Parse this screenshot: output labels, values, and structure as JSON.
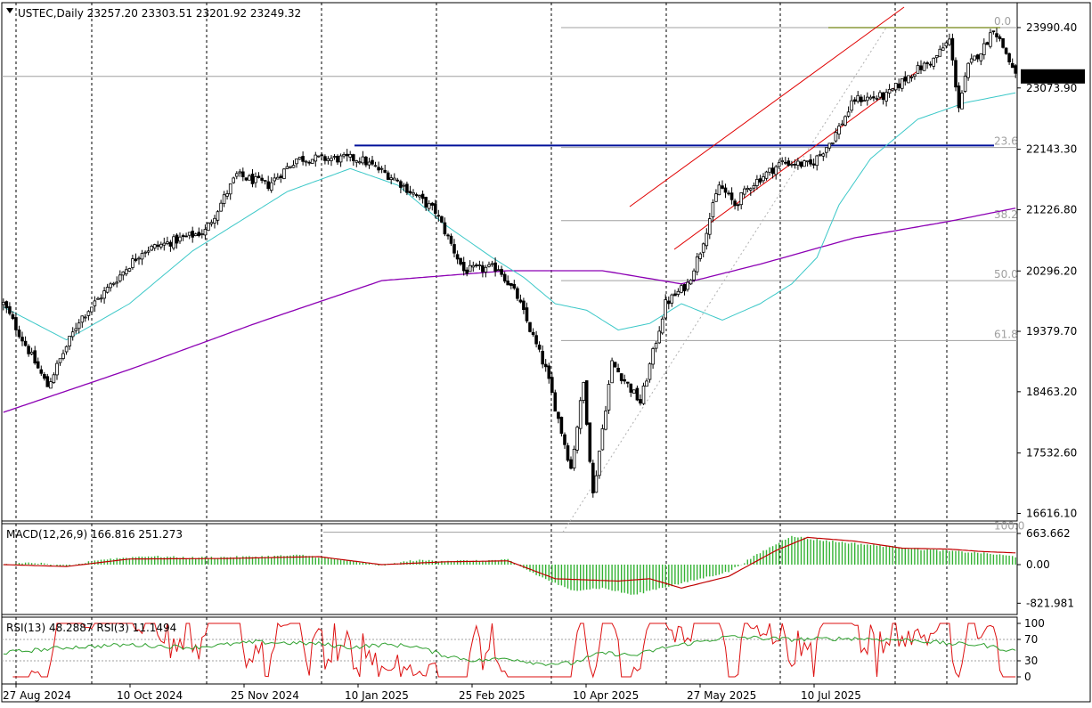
{
  "header": {
    "symbol": "USTEC,Daily",
    "ohlc": "23257.20 23303.51 23201.92 23249.32"
  },
  "colors": {
    "background": "#ffffff",
    "candle": "#000000",
    "ma_fast": "#3cc8c8",
    "ma_slow": "#8c00b4",
    "channel": "#e00000",
    "resistance": "#00109a",
    "fib_level": "#a0a0a0",
    "fib_top": "#8a9a3a",
    "macd_hist": "#34b234",
    "macd_signal": "#c00000",
    "rsi13": "#2ea02e",
    "rsi3": "#dd1010",
    "grid": "#000000"
  },
  "chart_data": [
    {
      "type": "candlestick",
      "name": "price",
      "price_axis": {
        "ticks": [
          "23990.40",
          "23073.90",
          "22143.30",
          "21226.80",
          "20296.20",
          "19379.70",
          "18463.20",
          "17532.60",
          "16616.10"
        ],
        "current_price": "23249.32"
      },
      "date_axis": [
        "27 Aug 2024",
        "10 Oct 2024",
        "25 Nov 2024",
        "10 Jan 2025",
        "25 Feb 2025",
        "10 Apr 2025",
        "27 May 2025",
        "10 Jul 2025"
      ],
      "fibonacci_levels": [
        {
          "label": "0.0",
          "price": 23990
        },
        {
          "label": "23.6",
          "price": 22170
        },
        {
          "label": "38.2",
          "price": 21060
        },
        {
          "label": "50.0",
          "price": 20150
        },
        {
          "label": "61.8",
          "price": 19240
        },
        {
          "label": "100.0",
          "price": 16330
        }
      ],
      "resistance_level": 22200,
      "anchors": [
        [
          0,
          19800
        ],
        [
          14,
          18550
        ],
        [
          24,
          19550
        ],
        [
          44,
          20600
        ],
        [
          64,
          20900
        ],
        [
          74,
          21750
        ],
        [
          84,
          21600
        ],
        [
          93,
          22000
        ],
        [
          113,
          22000
        ],
        [
          124,
          21700
        ],
        [
          137,
          21200
        ],
        [
          146,
          20300
        ],
        [
          157,
          20350
        ],
        [
          163,
          19900
        ],
        [
          172,
          18800
        ],
        [
          180,
          17300
        ],
        [
          184,
          18600
        ],
        [
          187,
          16900
        ],
        [
          193,
          18900
        ],
        [
          202,
          18300
        ],
        [
          210,
          19800
        ],
        [
          217,
          20100
        ],
        [
          221,
          20600
        ],
        [
          227,
          21600
        ],
        [
          232,
          21300
        ],
        [
          237,
          21600
        ],
        [
          247,
          21950
        ],
        [
          256,
          21900
        ],
        [
          263,
          22300
        ],
        [
          270,
          22900
        ],
        [
          280,
          22950
        ],
        [
          288,
          23300
        ],
        [
          295,
          23500
        ],
        [
          300,
          23800
        ],
        [
          303,
          22800
        ],
        [
          306,
          23400
        ],
        [
          311,
          23700
        ],
        [
          314,
          23990
        ],
        [
          318,
          23600
        ],
        [
          321,
          23249
        ]
      ],
      "ma_fast": [
        [
          0,
          19750
        ],
        [
          20,
          19250
        ],
        [
          40,
          19800
        ],
        [
          60,
          20600
        ],
        [
          90,
          21500
        ],
        [
          110,
          21850
        ],
        [
          125,
          21600
        ],
        [
          140,
          21000
        ],
        [
          155,
          20500
        ],
        [
          165,
          20200
        ],
        [
          175,
          19800
        ],
        [
          185,
          19700
        ],
        [
          195,
          19400
        ],
        [
          205,
          19500
        ],
        [
          215,
          19800
        ],
        [
          228,
          19550
        ],
        [
          240,
          19800
        ],
        [
          250,
          20100
        ],
        [
          258,
          20500
        ],
        [
          265,
          21300
        ],
        [
          275,
          22000
        ],
        [
          290,
          22600
        ],
        [
          305,
          22850
        ],
        [
          321,
          23000
        ]
      ],
      "ma_slow": [
        [
          0,
          18150
        ],
        [
          40,
          18800
        ],
        [
          80,
          19500
        ],
        [
          120,
          20150
        ],
        [
          160,
          20300
        ],
        [
          190,
          20300
        ],
        [
          215,
          20100
        ],
        [
          240,
          20400
        ],
        [
          270,
          20800
        ],
        [
          300,
          21050
        ],
        [
          321,
          21250
        ]
      ]
    },
    {
      "type": "bar",
      "name": "macd",
      "label": "MACD(12,26,9) 166.816 251.273",
      "ticks": [
        "663.662",
        "0.00",
        "-821.981"
      ],
      "hist_anchors": [
        [
          0,
          0
        ],
        [
          10,
          40
        ],
        [
          20,
          -50
        ],
        [
          30,
          100
        ],
        [
          45,
          180
        ],
        [
          60,
          150
        ],
        [
          80,
          170
        ],
        [
          95,
          200
        ],
        [
          110,
          80
        ],
        [
          120,
          -20
        ],
        [
          130,
          90
        ],
        [
          150,
          80
        ],
        [
          160,
          100
        ],
        [
          170,
          -250
        ],
        [
          180,
          -550
        ],
        [
          190,
          -500
        ],
        [
          200,
          -650
        ],
        [
          205,
          -550
        ],
        [
          215,
          -400
        ],
        [
          230,
          -150
        ],
        [
          240,
          250
        ],
        [
          250,
          620
        ],
        [
          255,
          550
        ],
        [
          270,
          450
        ],
        [
          290,
          330
        ],
        [
          310,
          250
        ],
        [
          321,
          170
        ]
      ],
      "signal_anchors": [
        [
          0,
          0
        ],
        [
          20,
          -40
        ],
        [
          40,
          120
        ],
        [
          70,
          130
        ],
        [
          100,
          170
        ],
        [
          120,
          0
        ],
        [
          140,
          60
        ],
        [
          160,
          80
        ],
        [
          175,
          -300
        ],
        [
          195,
          -350
        ],
        [
          205,
          -300
        ],
        [
          215,
          -500
        ],
        [
          230,
          -250
        ],
        [
          245,
          300
        ],
        [
          255,
          580
        ],
        [
          270,
          500
        ],
        [
          285,
          350
        ],
        [
          300,
          330
        ],
        [
          310,
          280
        ],
        [
          321,
          250
        ]
      ]
    },
    {
      "type": "line",
      "name": "rsi",
      "label": "RSI(13) 48.2887  RSI(3) 11.1494",
      "ticks": [
        "100",
        "70",
        "30",
        "0"
      ],
      "levels": [
        70,
        30
      ],
      "rsi13_anchors": [
        [
          0,
          45
        ],
        [
          20,
          55
        ],
        [
          40,
          60
        ],
        [
          60,
          55
        ],
        [
          80,
          65
        ],
        [
          100,
          62
        ],
        [
          110,
          55
        ],
        [
          120,
          60
        ],
        [
          130,
          58
        ],
        [
          140,
          40
        ],
        [
          150,
          30
        ],
        [
          160,
          35
        ],
        [
          170,
          25
        ],
        [
          180,
          25
        ],
        [
          190,
          45
        ],
        [
          200,
          40
        ],
        [
          210,
          55
        ],
        [
          230,
          75
        ],
        [
          250,
          70
        ],
        [
          270,
          72
        ],
        [
          290,
          68
        ],
        [
          300,
          62
        ],
        [
          310,
          60
        ],
        [
          321,
          48
        ]
      ]
    }
  ]
}
